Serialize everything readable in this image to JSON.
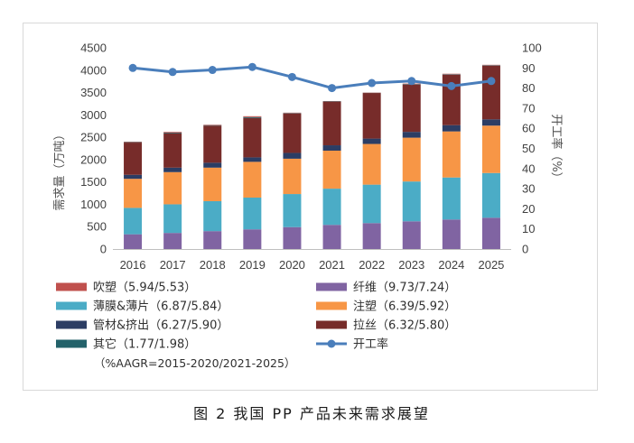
{
  "caption": "图 2 我国 PP 产品未来需求展望",
  "chart_data": {
    "type": "bar",
    "stacked": true,
    "categories": [
      "2016",
      "2017",
      "2018",
      "2019",
      "2020",
      "2021",
      "2022",
      "2023",
      "2024",
      "2025"
    ],
    "series": [
      {
        "name": "纤维",
        "aagr": "（9.73/7.24）",
        "color": "#8064a2",
        "values": [
          330,
          360,
          400,
          440,
          490,
          540,
          580,
          620,
          660,
          700
        ]
      },
      {
        "name": "薄膜&薄片",
        "aagr": "（6.87/5.84）",
        "color": "#4bacc6",
        "values": [
          590,
          640,
          670,
          710,
          740,
          810,
          860,
          890,
          940,
          1000
        ]
      },
      {
        "name": "注塑",
        "aagr": "（6.39/5.92）",
        "color": "#f79646",
        "values": [
          650,
          720,
          750,
          800,
          790,
          850,
          910,
          980,
          1030,
          1060
        ]
      },
      {
        "name": "管材&挤出",
        "aagr": "（6.27/5.90）",
        "color": "#2c3d64",
        "values": [
          90,
          100,
          110,
          100,
          130,
          120,
          120,
          130,
          140,
          140
        ]
      },
      {
        "name": "拉丝",
        "aagr": "（6.32/5.80）",
        "color": "#772c2a",
        "values": [
          720,
          770,
          830,
          880,
          880,
          970,
          1020,
          1060,
          1130,
          1200
        ]
      },
      {
        "name": "其它",
        "aagr": "（1.77/1.98）",
        "color": "#23626a",
        "values": [
          10,
          15,
          10,
          20,
          10,
          10,
          5,
          10,
          10,
          10
        ]
      },
      {
        "name": "吹塑",
        "aagr": "（5.94/5.53）",
        "color": "#c0504d",
        "values": [
          10,
          15,
          10,
          20,
          10,
          10,
          5,
          10,
          10,
          10
        ]
      }
    ],
    "line_series": {
      "name": "开工率",
      "type": "line",
      "axis": "right",
      "color": "#4a7ebb",
      "values": [
        90,
        88,
        89,
        90.5,
        85.5,
        80,
        82.5,
        83.5,
        81,
        83.5
      ]
    },
    "ylabel": "需求量（万吨）",
    "y2label": "开工率（%）",
    "ylim": [
      0,
      4500
    ],
    "yticks": [
      0,
      500,
      1000,
      1500,
      2000,
      2500,
      3000,
      3500,
      4000,
      4500
    ],
    "y2lim": [
      0,
      100
    ],
    "y2ticks": [
      0,
      10,
      20,
      30,
      40,
      50,
      60,
      70,
      80,
      90,
      100
    ],
    "grid": false,
    "legend_position": "bottom",
    "legend_note": "（%AAGR=2015-2020/2021-2025）"
  }
}
